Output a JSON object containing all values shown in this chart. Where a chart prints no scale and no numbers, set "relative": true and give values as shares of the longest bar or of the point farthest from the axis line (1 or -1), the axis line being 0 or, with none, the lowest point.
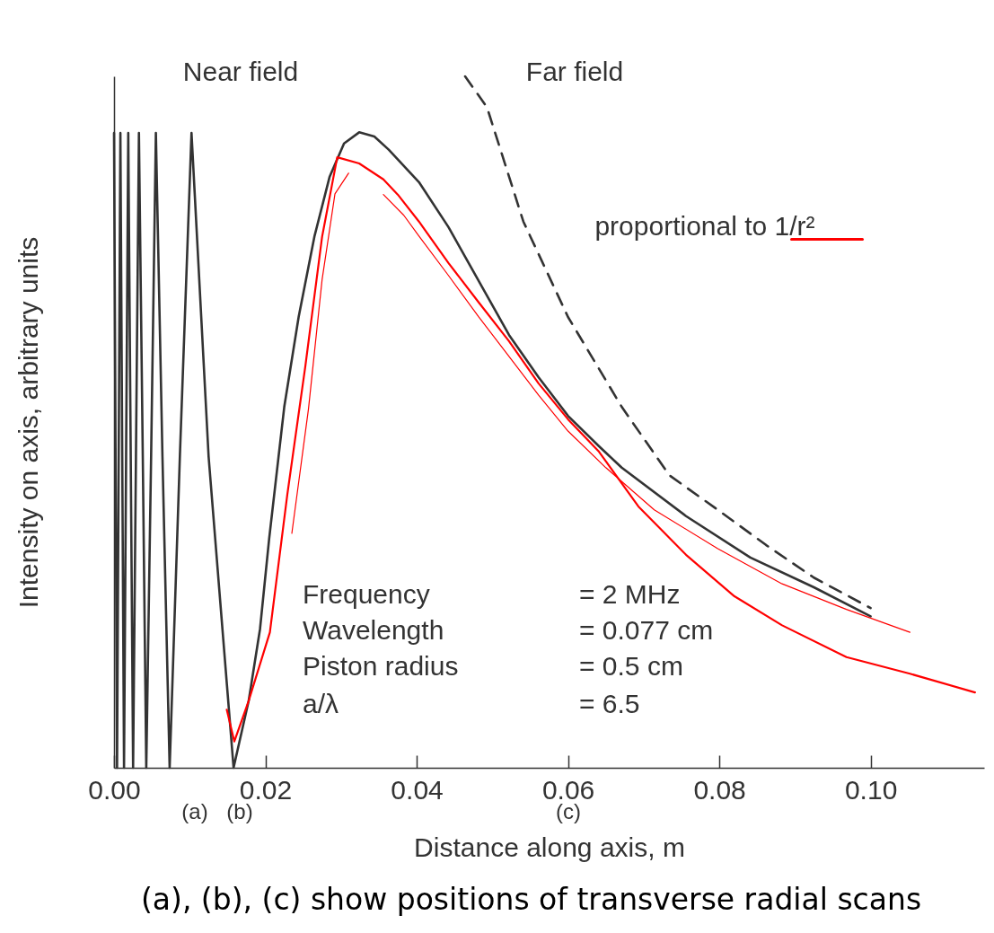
{
  "chart_data": {
    "type": "line",
    "relative": true,
    "xlabel": "Distance along axis, m",
    "ylabel": "Intensity on axis, arbitrary units",
    "xlim": [
      0,
      0.115
    ],
    "xticks": [
      {
        "value": 0,
        "label": "0.00"
      },
      0.02,
      0.04,
      0.06,
      0.08,
      {
        "value": 0.1,
        "label": "0.10"
      }
    ],
    "grid": false,
    "series": [
      {
        "color": "#333333",
        "x": [
          0,
          0.0004,
          0.00084,
          0.00132,
          0.00188,
          0.00252,
          0.00329,
          0.0038,
          0.00426,
          0.0049,
          0.00553,
          0.0064,
          0.00735,
          0.0087,
          0.01024,
          0.0125,
          0.0158,
          0.0178,
          0.0193,
          0.0205,
          0.0225,
          0.0244,
          0.0265,
          0.0285,
          0.0304,
          0.0324,
          0.0344,
          0.0363,
          0.0403,
          0.0442,
          0.0482,
          0.0522,
          0.0561,
          0.06,
          0.0641,
          0.0671,
          0.0756,
          0.0841,
          0.0925,
          0.1
        ],
        "values": [
          0.918,
          0,
          0.918,
          0,
          0.918,
          0,
          0.918,
          0.45,
          0,
          0.45,
          0.918,
          0.45,
          0,
          0.45,
          0.918,
          0.45,
          0,
          0.097,
          0.201,
          0.331,
          0.522,
          0.652,
          0.769,
          0.855,
          0.903,
          0.919,
          0.913,
          0.894,
          0.847,
          0.782,
          0.704,
          0.626,
          0.565,
          0.509,
          0.465,
          0.434,
          0.364,
          0.304,
          0.261,
          0.219
        ]
      },
      {
        "color": "#333333",
        "line_style": "dashed",
        "x": [
          0.0464,
          0.0493,
          0.0541,
          0.06,
          0.0671,
          0.0734,
          0.0798,
          0.0862,
          0.0925,
          0.1
        ],
        "values": [
          1,
          0.955,
          0.79,
          0.652,
          0.522,
          0.423,
          0.373,
          0.322,
          0.275,
          0.231
        ]
      },
      {
        "color": "#ff0000",
        "x": [
          0.0149,
          0.0159,
          0.0178,
          0.0206,
          0.0229,
          0.0253,
          0.0275,
          0.0295,
          0.0324,
          0.0356,
          0.0375,
          0.0403,
          0.0442,
          0.0482,
          0.0522,
          0.0561,
          0.06,
          0.0641,
          0.0693,
          0.0756,
          0.082,
          0.0883,
          0.0968,
          0.1052,
          0.1138
        ],
        "values": [
          0.084,
          0.038,
          0.097,
          0.196,
          0.395,
          0.582,
          0.768,
          0.883,
          0.874,
          0.851,
          0.829,
          0.79,
          0.73,
          0.673,
          0.617,
          0.556,
          0.504,
          0.457,
          0.378,
          0.308,
          0.248,
          0.206,
          0.16,
          0.136,
          0.109
        ]
      },
      {
        "color": "#ff0000",
        "x": [
          0.0235,
          0.0257,
          0.0275,
          0.0292,
          0.031
        ],
        "values": [
          0.339,
          0.519,
          0.706,
          0.83,
          0.86
        ]
      },
      {
        "color": "#ff0000",
        "x": [
          0.0356,
          0.0383,
          0.0403,
          0.0442,
          0.0482,
          0.0522,
          0.0561,
          0.06,
          0.065,
          0.0714,
          0.0798,
          0.0883,
          0.0968,
          0.1052
        ],
        "values": [
          0.829,
          0.799,
          0.769,
          0.712,
          0.652,
          0.595,
          0.539,
          0.487,
          0.434,
          0.373,
          0.317,
          0.266,
          0.229,
          0.196
        ]
      }
    ],
    "annotations": [
      "Near field",
      "Far field",
      "proportional to 1/r²",
      "Frequency",
      "= 2 MHz",
      "Wavelength",
      "= 0.077 cm",
      "Piston radius",
      "= 0.5 cm",
      "a/λ",
      "= 6.5",
      "(a)",
      "(b)",
      "(c)",
      "(a), (b), (c) show positions of transverse radial scans"
    ]
  }
}
